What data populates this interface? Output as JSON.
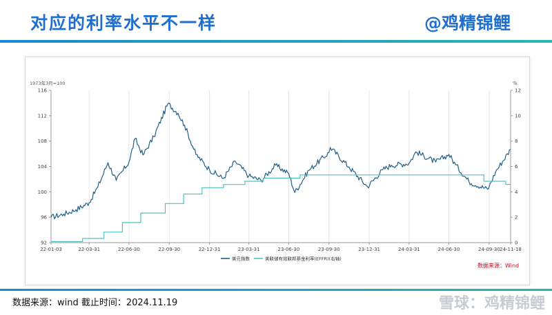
{
  "page": {
    "title": "对应的利率水平不一样",
    "brand": "@鸡精锦鲤",
    "source_note": "数据来源：wind 截止时间：2024.11.19",
    "watermark": "雪球：鸡精锦鲤"
  },
  "chart_data": {
    "type": "line",
    "left_unit": "1973年3月=100",
    "right_unit": "%",
    "source_label": "数据来源：Wind",
    "x_ticks": [
      "22-01-03",
      "22-03-31",
      "22-06-30",
      "22-09-30",
      "22-12-31",
      "23-03-31",
      "23-06-30",
      "23-09-30",
      "23-12-31",
      "24-03-31",
      "24-06-30",
      "24-09-30",
      "24-11-18"
    ],
    "y_left": {
      "min": 92,
      "max": 116,
      "ticks": [
        "92",
        "96",
        "100",
        "104",
        "108",
        "112",
        "116"
      ]
    },
    "y_right": {
      "min": 0,
      "max": 12,
      "ticks": [
        "0",
        "2",
        "4",
        "6",
        "8",
        "10",
        "12"
      ]
    },
    "colors": {
      "index": "#1f5f8a",
      "rate": "#4fc2c0"
    },
    "series": [
      {
        "name": "美元指数",
        "axis": "left",
        "x": [
          "22-01-03",
          "22-02-01",
          "22-03-01",
          "22-03-31",
          "22-04-20",
          "22-05-13",
          "22-06-01",
          "22-06-30",
          "22-07-14",
          "22-08-01",
          "22-08-26",
          "22-09-27",
          "22-10-20",
          "22-11-04",
          "22-11-30",
          "22-12-31",
          "23-01-31",
          "23-02-28",
          "23-03-31",
          "23-04-28",
          "23-05-31",
          "23-06-30",
          "23-07-14",
          "23-08-15",
          "23-09-30",
          "23-10-03",
          "23-11-15",
          "23-12-27",
          "24-01-31",
          "24-02-20",
          "24-03-31",
          "24-04-16",
          "24-05-31",
          "24-06-30",
          "24-07-15",
          "24-08-15",
          "24-09-27",
          "24-10-15",
          "24-11-18"
        ],
        "values": [
          96.0,
          96.5,
          97.2,
          98.3,
          100.8,
          104.6,
          101.8,
          104.7,
          108.4,
          105.8,
          108.7,
          113.9,
          112.4,
          110.5,
          105.9,
          103.5,
          102.1,
          104.8,
          102.5,
          101.8,
          104.2,
          102.9,
          99.9,
          103.4,
          106.2,
          107.0,
          103.9,
          100.8,
          103.5,
          104.2,
          104.5,
          106.3,
          104.7,
          105.9,
          104.3,
          101.6,
          100.4,
          103.2,
          106.7
        ]
      },
      {
        "name": "美联储有效联邦基金利率(EFFR)(右轴)",
        "axis": "right",
        "x": [
          "22-01-03",
          "22-03-16",
          "22-05-04",
          "22-06-15",
          "22-07-27",
          "22-09-21",
          "22-11-02",
          "22-12-14",
          "23-02-01",
          "23-03-22",
          "23-05-03",
          "23-07-26",
          "24-09-18",
          "24-11-07",
          "24-11-18"
        ],
        "values": [
          0.08,
          0.33,
          0.83,
          1.58,
          2.33,
          3.08,
          3.83,
          4.33,
          4.58,
          4.83,
          5.08,
          5.33,
          4.83,
          4.58,
          4.58
        ]
      }
    ]
  }
}
